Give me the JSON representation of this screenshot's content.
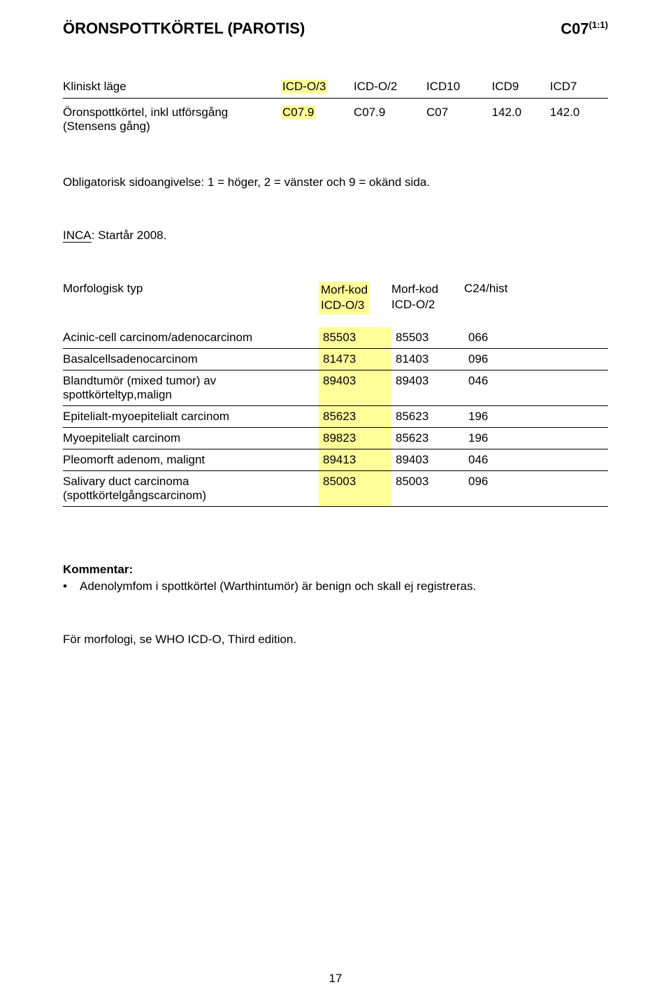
{
  "header": {
    "title": "ÖRONSPOTTKÖRTEL (PAROTIS)",
    "code_prefix": "C07",
    "code_sup": "(1:1)"
  },
  "context_table": {
    "row_label": "Kliniskt läge",
    "col_headers": [
      "ICD-O/3",
      "ICD-O/2",
      "ICD10",
      "ICD9",
      "ICD7"
    ],
    "row": {
      "label_line1": "Öronspottkörtel, inkl utförsgång",
      "label_line2": "(Stensens gång)",
      "cells": [
        "C07.9",
        "C07.9",
        "C07",
        "142.0",
        "142.0"
      ]
    }
  },
  "side_note": "Obligatorisk sidoangivelse: 1 = höger, 2 = vänster och 9 = okänd sida.",
  "inca": {
    "label": "INCA",
    "text": ": Startår 2008."
  },
  "morf": {
    "header": {
      "label": "Morfologisk typ",
      "col1_line1": "Morf-kod",
      "col1_line2": "ICD-O/3",
      "col2_line1": "Morf-kod",
      "col2_line2": "ICD-O/2",
      "col3": "C24/hist"
    },
    "rows": [
      {
        "label": "Acinic-cell carcinom/adenocarcinom",
        "c1": "85503",
        "c2": "85503",
        "c3": "066"
      },
      {
        "label": "Basalcellsadenocarcinom",
        "c1": "81473",
        "c2": "81403",
        "c3": "096"
      },
      {
        "label": "Blandtumör (mixed tumor) av spottkörteltyp,malign",
        "c1": "89403",
        "c2": "89403",
        "c3": "046"
      },
      {
        "label": "Epitelialt-myoepitelialt carcinom",
        "c1": "85623",
        "c2": "85623",
        "c3": "196"
      },
      {
        "label": "Myoepitelialt carcinom",
        "c1": "89823",
        "c2": "85623",
        "c3": "196"
      },
      {
        "label": "Pleomorft adenom, malignt",
        "c1": "89413",
        "c2": "89403",
        "c3": "046"
      },
      {
        "label": "Salivary duct carcinoma (spottkörtelgångscarcinom)",
        "c1": "85003",
        "c2": "85003",
        "c3": "096"
      }
    ]
  },
  "kommentar": {
    "title": "Kommentar:",
    "bullet": "Adenolymfom i spottkörtel (Warthintumör) är benign och skall ej registreras."
  },
  "footer": "För morfologi, se WHO ICD-O, Third edition.",
  "page_number": "17",
  "colors": {
    "highlight": "#ffff99",
    "text": "#000000",
    "bg": "#ffffff"
  }
}
